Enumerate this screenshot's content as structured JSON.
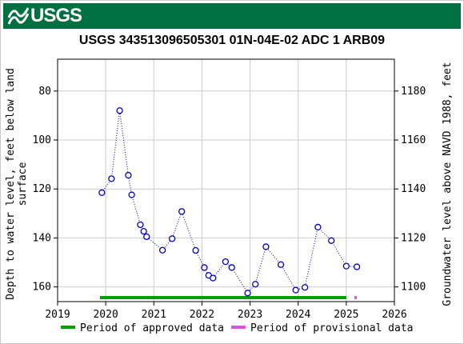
{
  "banner": {
    "logo_text": "USGS",
    "logo_icon": "usgs-wave-icon",
    "color": "#006f41"
  },
  "chart_data": {
    "type": "scatter",
    "title": "USGS 343513096505301 01N-04E-02 ADC 1 ARB09",
    "ylabel_left": "Depth to water level, feet below land surface",
    "ylabel_left_lines": [
      "Depth to water level, feet below land",
      "surface"
    ],
    "ylabel_right": "Groundwater level above NAVD 1988, feet",
    "x_ticks": [
      "2019",
      "2020",
      "2021",
      "2022",
      "2023",
      "2024",
      "2025",
      "2026"
    ],
    "xlim": [
      2019,
      2026
    ],
    "y_ticks_left": [
      80,
      100,
      120,
      140,
      160
    ],
    "ylim_left": [
      166,
      67
    ],
    "y_ticks_right": [
      1100,
      1120,
      1140,
      1160,
      1180
    ],
    "right_axis_offset": 1260,
    "grid": true,
    "series": [
      {
        "name": "Depth to water level",
        "marker": "open-circle",
        "color": "#0000cc",
        "connector": "dotted",
        "points": [
          {
            "x": 2019.92,
            "y": 121.5
          },
          {
            "x": 2020.12,
            "y": 115.8
          },
          {
            "x": 2020.29,
            "y": 88.0
          },
          {
            "x": 2020.47,
            "y": 114.4
          },
          {
            "x": 2020.54,
            "y": 122.4
          },
          {
            "x": 2020.72,
            "y": 134.6
          },
          {
            "x": 2020.79,
            "y": 137.3
          },
          {
            "x": 2020.85,
            "y": 139.5
          },
          {
            "x": 2021.18,
            "y": 145.0
          },
          {
            "x": 2021.38,
            "y": 140.3
          },
          {
            "x": 2021.58,
            "y": 129.2
          },
          {
            "x": 2021.87,
            "y": 145.1
          },
          {
            "x": 2022.05,
            "y": 152.1
          },
          {
            "x": 2022.14,
            "y": 155.3
          },
          {
            "x": 2022.23,
            "y": 156.4
          },
          {
            "x": 2022.49,
            "y": 149.7
          },
          {
            "x": 2022.62,
            "y": 152.1
          },
          {
            "x": 2022.95,
            "y": 162.5
          },
          {
            "x": 2023.11,
            "y": 158.9
          },
          {
            "x": 2023.33,
            "y": 143.6
          },
          {
            "x": 2023.64,
            "y": 150.9
          },
          {
            "x": 2023.95,
            "y": 161.3
          },
          {
            "x": 2024.14,
            "y": 160.2
          },
          {
            "x": 2024.41,
            "y": 135.6
          },
          {
            "x": 2024.69,
            "y": 141.1
          },
          {
            "x": 2025.0,
            "y": 151.5
          },
          {
            "x": 2025.22,
            "y": 151.8
          }
        ]
      }
    ],
    "periods": [
      {
        "label": "Period of approved data",
        "color": "#00a000",
        "from": 2019.88,
        "to": 2025.0
      },
      {
        "label": "Period of provisional data",
        "color": "#e050e0",
        "from": 2025.17,
        "to": 2025.22
      }
    ],
    "legend_placement": "bottom"
  }
}
